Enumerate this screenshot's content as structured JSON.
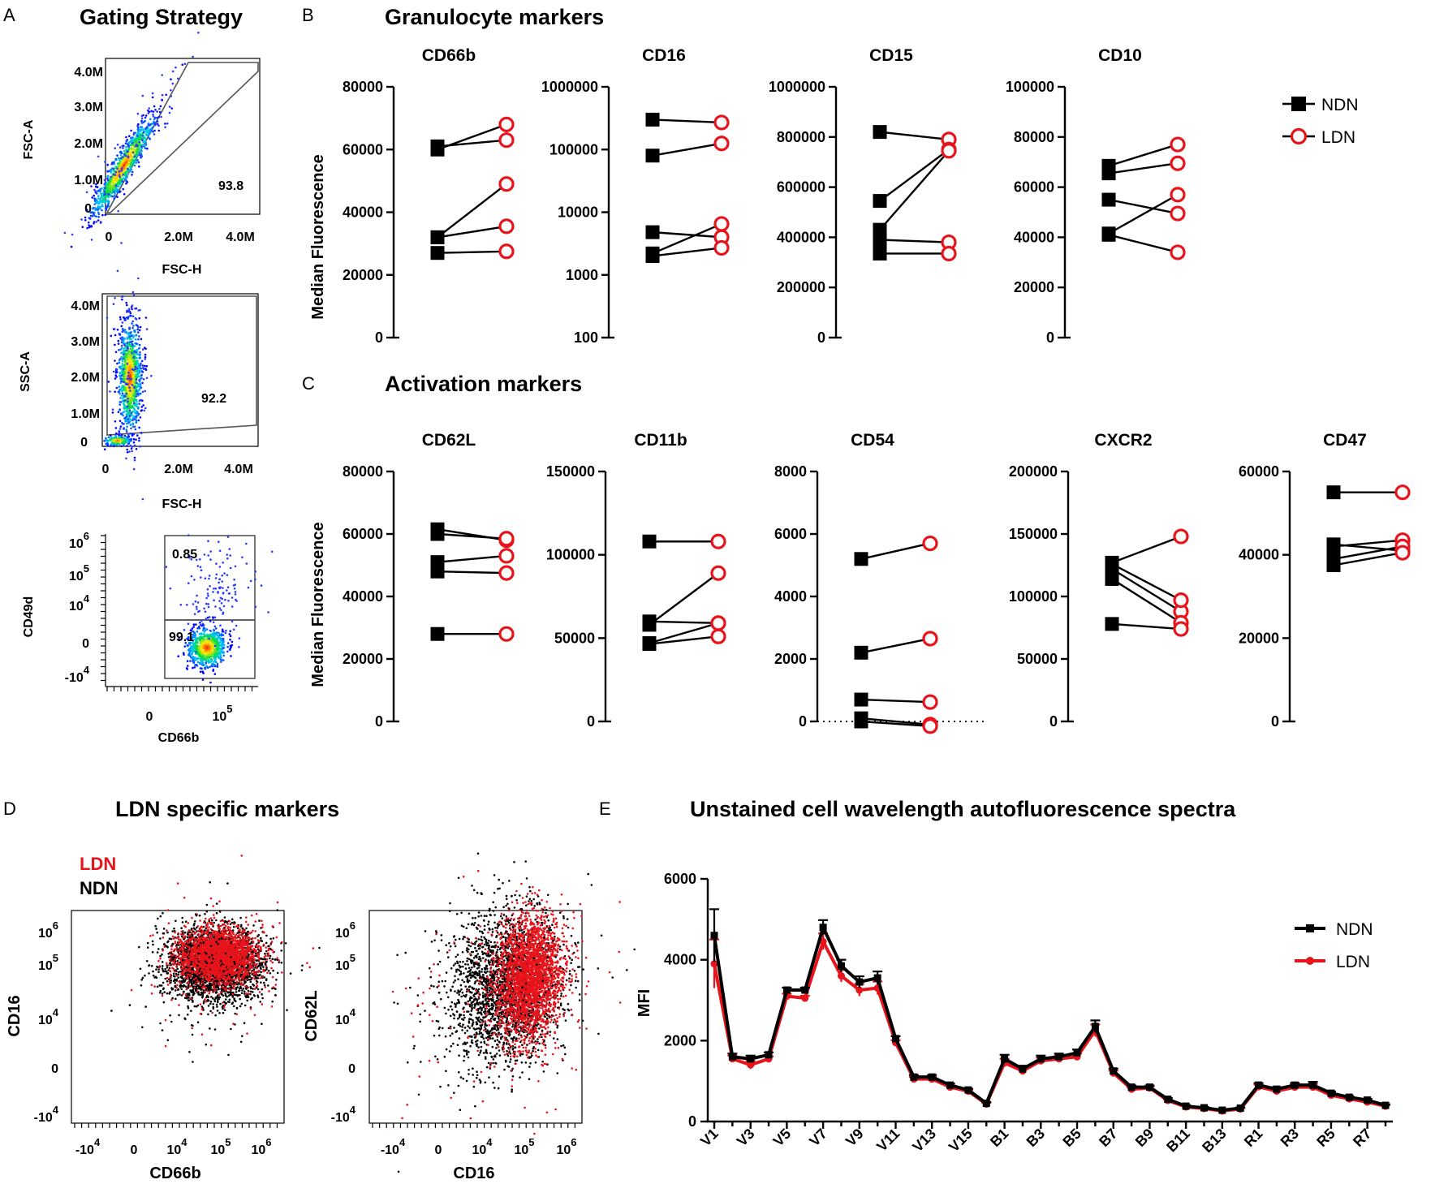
{
  "panels": {
    "A": {
      "letter": "A",
      "title": "Gating Strategy"
    },
    "B": {
      "letter": "B",
      "title": "Granulocyte markers"
    },
    "C": {
      "letter": "C",
      "title": "Activation markers"
    },
    "D": {
      "letter": "D",
      "title": "LDN specific markers"
    },
    "E": {
      "letter": "E",
      "title": "Unstained cell wavelength autofluorescence spectra"
    }
  },
  "colors": {
    "ndn": "#000000",
    "ldn": "#e8141b"
  },
  "legend": {
    "ndn": "NDN",
    "ldn": "LDN"
  },
  "ylabel_mfi": "Median Fluorescence",
  "chart_data": [
    {
      "id": "cd66b",
      "type": "line",
      "title": "CD66b",
      "ylim": [
        0,
        80000
      ],
      "yticks": [
        "0",
        "20000",
        "40000",
        "60000",
        "80000"
      ],
      "scale": "linear",
      "series": [
        {
          "name": "NDN",
          "values": [
            60000,
            61000,
            32000,
            32000,
            27000
          ]
        },
        {
          "name": "LDN",
          "values": [
            68000,
            63000,
            49000,
            35500,
            27500
          ]
        }
      ]
    },
    {
      "id": "cd16",
      "type": "line",
      "title": "CD16",
      "ylim": [
        100,
        1000000
      ],
      "yticks": [
        "100",
        "1000",
        "10000",
        "100000",
        "1000000"
      ],
      "scale": "log",
      "series": [
        {
          "name": "NDN",
          "values": [
            300000,
            80000,
            4800,
            2200,
            2000
          ]
        },
        {
          "name": "LDN",
          "values": [
            270000,
            125000,
            4000,
            6500,
            2700
          ]
        }
      ]
    },
    {
      "id": "cd15",
      "type": "line",
      "title": "CD15",
      "ylim": [
        0,
        1000000
      ],
      "yticks": [
        "0",
        "200000",
        "400000",
        "600000",
        "800000",
        "1000000"
      ],
      "scale": "linear",
      "series": [
        {
          "name": "NDN",
          "values": [
            820000,
            545000,
            430000,
            390000,
            335000
          ]
        },
        {
          "name": "LDN",
          "values": [
            790000,
            750000,
            745000,
            380000,
            335000
          ]
        }
      ]
    },
    {
      "id": "cd10",
      "type": "line",
      "title": "CD10",
      "ylim": [
        0,
        100000
      ],
      "yticks": [
        "0",
        "20000",
        "40000",
        "60000",
        "80000",
        "100000"
      ],
      "scale": "linear",
      "series": [
        {
          "name": "NDN",
          "values": [
            68500,
            65500,
            55000,
            41500,
            41000
          ]
        },
        {
          "name": "LDN",
          "values": [
            77000,
            69500,
            49500,
            57000,
            34000
          ]
        }
      ]
    },
    {
      "id": "cd62l",
      "type": "line",
      "title": "CD62L",
      "ylim": [
        0,
        80000
      ],
      "yticks": [
        "0",
        "20000",
        "40000",
        "60000",
        "80000"
      ],
      "scale": "linear",
      "series": [
        {
          "name": "NDN",
          "values": [
            61500,
            60000,
            51000,
            48000,
            28000
          ]
        },
        {
          "name": "LDN",
          "values": [
            58000,
            58500,
            53000,
            47500,
            28000
          ]
        }
      ]
    },
    {
      "id": "cd11b",
      "type": "line",
      "title": "CD11b",
      "ylim": [
        0,
        150000
      ],
      "yticks": [
        "0",
        "50000",
        "100000",
        "150000"
      ],
      "scale": "linear",
      "series": [
        {
          "name": "NDN",
          "values": [
            108000,
            60000,
            58000,
            47000,
            46500
          ]
        },
        {
          "name": "LDN",
          "values": [
            108000,
            59000,
            89000,
            59000,
            51000
          ]
        }
      ]
    },
    {
      "id": "cd54",
      "type": "line",
      "title": "CD54",
      "ylim": [
        0,
        8000
      ],
      "yticks": [
        "0",
        "2000",
        "4000",
        "6000",
        "8000"
      ],
      "scale": "linear",
      "dotted_zero": true,
      "series": [
        {
          "name": "NDN",
          "values": [
            5200,
            2200,
            700,
            100,
            0
          ]
        },
        {
          "name": "LDN",
          "values": [
            5700,
            2650,
            620,
            -100,
            -150
          ]
        }
      ]
    },
    {
      "id": "cxcr2",
      "type": "line",
      "title": "CXCR2",
      "ylim": [
        0,
        200000
      ],
      "yticks": [
        "0",
        "50000",
        "100000",
        "150000",
        "200000"
      ],
      "scale": "linear",
      "series": [
        {
          "name": "NDN",
          "values": [
            127000,
            122000,
            114000,
            126000,
            78000
          ]
        },
        {
          "name": "LDN",
          "values": [
            148000,
            88000,
            79000,
            97000,
            74000
          ]
        }
      ]
    },
    {
      "id": "cd47",
      "type": "line",
      "title": "CD47",
      "ylim": [
        0,
        60000
      ],
      "yticks": [
        "0",
        "20000",
        "40000",
        "60000"
      ],
      "scale": "linear",
      "series": [
        {
          "name": "NDN",
          "values": [
            55000,
            42500,
            42000,
            39000,
            37500
          ]
        },
        {
          "name": "LDN",
          "values": [
            55000,
            41000,
            43500,
            42000,
            40500
          ]
        }
      ]
    },
    {
      "id": "spectra",
      "type": "line",
      "title": "Unstained cell wavelength autofluorescence spectra",
      "ylabel": "MFI",
      "ylim": [
        0,
        6000
      ],
      "yticks": [
        "0",
        "2000",
        "4000",
        "6000"
      ],
      "x": [
        "V1",
        "V2",
        "V3",
        "V4",
        "V5",
        "V6",
        "V7",
        "V8",
        "V9",
        "V10",
        "V11",
        "V12",
        "V13",
        "V14",
        "V15",
        "V16",
        "B1",
        "B2",
        "B3",
        "B4",
        "B5",
        "B6",
        "B7",
        "B8",
        "B9",
        "B10",
        "B11",
        "B12",
        "B13",
        "B14",
        "R1",
        "R2",
        "R3",
        "R4",
        "R5",
        "R6",
        "R7",
        "R8"
      ],
      "xticks": [
        "V1",
        "V3",
        "V5",
        "V7",
        "V9",
        "V11",
        "V13",
        "V15",
        "B1",
        "B3",
        "B5",
        "B7",
        "B9",
        "B11",
        "B13",
        "R1",
        "R3",
        "R5",
        "R7"
      ],
      "series": [
        {
          "name": "NDN",
          "values": [
            4600,
            1600,
            1550,
            1650,
            3250,
            3250,
            4800,
            3850,
            3450,
            3550,
            2050,
            1100,
            1100,
            900,
            780,
            450,
            1550,
            1300,
            1550,
            1600,
            1700,
            2350,
            1250,
            850,
            850,
            550,
            380,
            340,
            280,
            330,
            900,
            800,
            900,
            900,
            700,
            600,
            530,
            400
          ]
        },
        {
          "name": "LDN",
          "values": [
            3900,
            1550,
            1400,
            1550,
            3100,
            3050,
            4450,
            3600,
            3250,
            3300,
            1950,
            1050,
            1050,
            850,
            750,
            430,
            1450,
            1250,
            1500,
            1550,
            1600,
            2250,
            1200,
            800,
            830,
            520,
            360,
            320,
            260,
            310,
            860,
            750,
            850,
            850,
            650,
            560,
            480,
            380
          ]
        }
      ]
    }
  ],
  "gating": {
    "p1": {
      "ylabel": "FSC-A",
      "xlabel": "FSC-H",
      "yticks": [
        "4.0M",
        "3.0M",
        "2.0M",
        "1.0M",
        "0"
      ],
      "xticks": [
        "0",
        "2.0M",
        "4.0M"
      ],
      "gate_value": "93.8"
    },
    "p2": {
      "ylabel": "SSC-A",
      "xlabel": "FSC-H",
      "yticks": [
        "4.0M",
        "3.0M",
        "2.0M",
        "1.0M",
        "0"
      ],
      "xticks": [
        "0",
        "2.0M",
        "4.0M"
      ],
      "gate_value": "92.2"
    },
    "p3": {
      "ylabel": "CD49d",
      "xlabel": "CD66b",
      "gate_upper": "0.85",
      "gate_lower": "99.1",
      "yticks": [
        {
          "base": "10",
          "exp": "6"
        },
        {
          "base": "10",
          "exp": "5"
        },
        {
          "base": "10",
          "exp": "4"
        },
        {
          "base": "0",
          "exp": ""
        },
        {
          "base": "-10",
          "exp": "4"
        }
      ],
      "xticks": [
        {
          "base": "0",
          "exp": ""
        },
        {
          "base": "10",
          "exp": "5"
        }
      ]
    }
  },
  "ldn_markers": {
    "legend_ldn": "LDN",
    "legend_ndn": "NDN",
    "p1": {
      "ylabel": "CD16",
      "xlabel": "CD66b"
    },
    "p2": {
      "ylabel": "CD62L",
      "xlabel": "CD16"
    },
    "logticks": [
      {
        "base": "10",
        "exp": "6"
      },
      {
        "base": "10",
        "exp": "5"
      },
      {
        "base": "10",
        "exp": "4"
      },
      {
        "base": "0",
        "exp": ""
      },
      {
        "base": "-10",
        "exp": "4"
      }
    ],
    "xlogticks": [
      {
        "base": "-10",
        "exp": "4"
      },
      {
        "base": "0",
        "exp": ""
      },
      {
        "base": "10",
        "exp": "4"
      },
      {
        "base": "10",
        "exp": "5"
      },
      {
        "base": "10",
        "exp": "6"
      }
    ]
  }
}
